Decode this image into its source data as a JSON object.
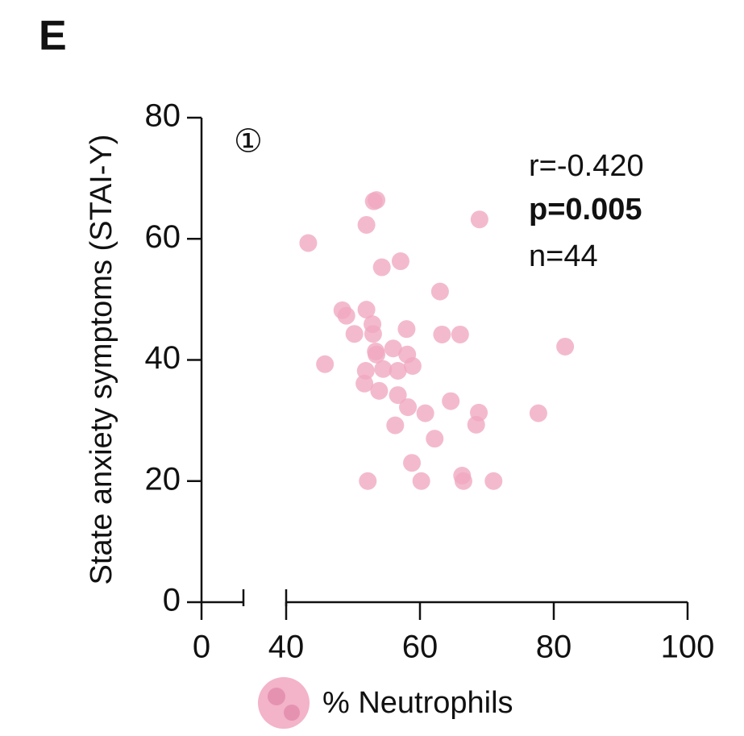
{
  "panel_label": "E",
  "chart_data": {
    "type": "scatter",
    "marker": "①",
    "ylabel": "State anxiety symptoms (STAI-Y)",
    "xlabel": "% Neutrophils",
    "stats": [
      "r=-0.420",
      "p=0.005",
      "n=44"
    ],
    "color": "#f0a9c0",
    "xlim": [
      0,
      100
    ],
    "x_break": [
      6.25,
      40
    ],
    "xticks": [
      0,
      40,
      60,
      80,
      100
    ],
    "ylim": [
      0,
      80
    ],
    "yticks": [
      0,
      20,
      40,
      60,
      80
    ],
    "x": [
      43.3,
      53.5,
      53.1,
      52.0,
      68.9,
      54.3,
      57.1,
      63.0,
      48.4,
      49.0,
      52.0,
      52.9,
      50.2,
      53.0,
      58.0,
      63.3,
      66.0,
      81.7,
      53.4,
      56.0,
      58.1,
      45.8,
      58.9,
      54.5,
      56.7,
      51.9,
      51.7,
      53.9,
      56.7,
      58.2,
      64.6,
      60.8,
      68.8,
      77.7,
      68.4,
      56.3,
      62.2,
      58.8,
      52.2,
      60.2,
      66.3,
      66.5,
      71.0,
      53.5
    ],
    "y": [
      59.3,
      66.4,
      66.2,
      62.3,
      63.2,
      55.3,
      56.3,
      51.3,
      48.2,
      47.3,
      48.3,
      45.9,
      44.3,
      44.3,
      45.1,
      44.2,
      44.2,
      42.2,
      41.4,
      41.9,
      40.9,
      39.3,
      39.0,
      38.5,
      38.2,
      38.2,
      36.1,
      34.9,
      34.2,
      32.2,
      33.2,
      31.2,
      31.3,
      31.2,
      29.3,
      29.2,
      27.0,
      23.0,
      20.0,
      20.0,
      20.9,
      20.0,
      20.0,
      40.9
    ]
  }
}
